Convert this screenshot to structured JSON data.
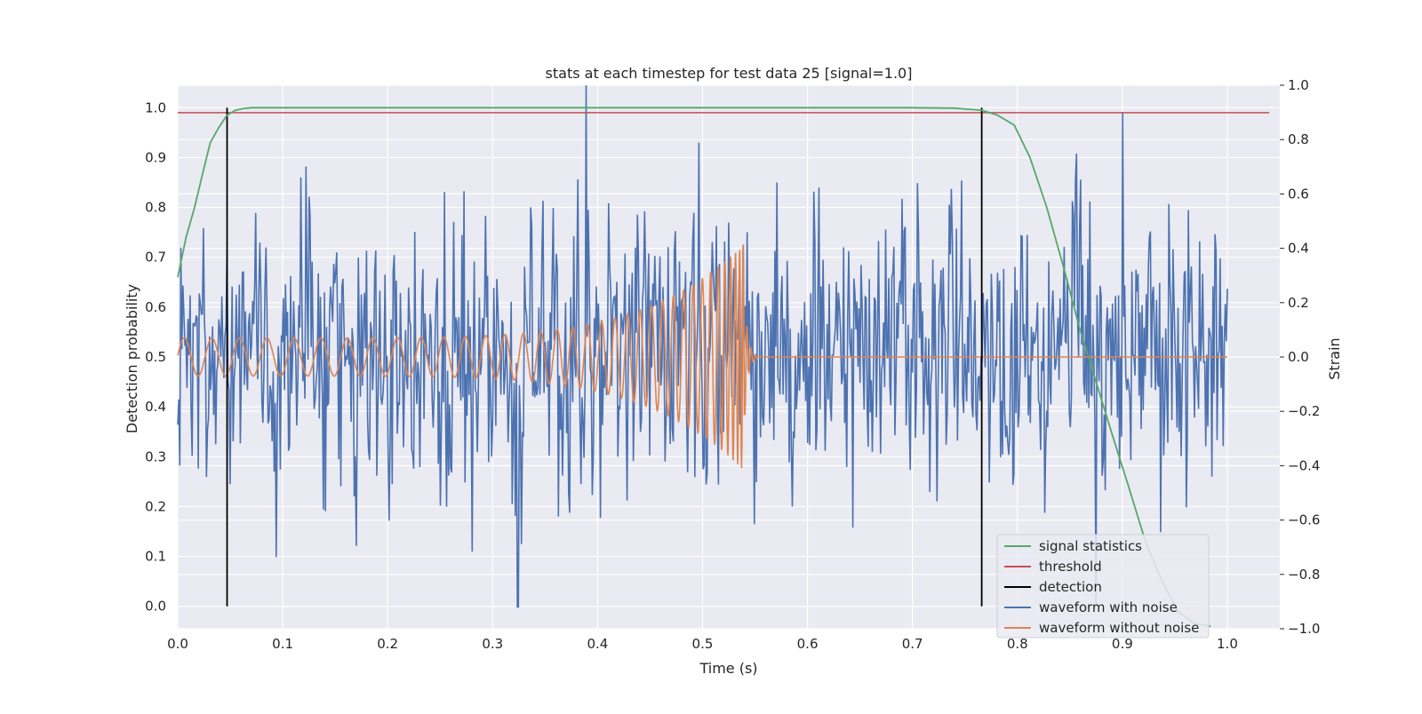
{
  "chart_data": {
    "type": "line",
    "title": "stats at each timestep for test data 25 [signal=1.0]",
    "xlabel": "Time (s)",
    "ylabel_left": "Detection probability",
    "ylabel_right": "Strain",
    "xlim": [
      0.0,
      1.05
    ],
    "ylim_left": [
      -0.045,
      1.045
    ],
    "ylim_right": [
      -1.0,
      1.0
    ],
    "x_ticks": [
      "0.0",
      "0.1",
      "0.2",
      "0.3",
      "0.4",
      "0.5",
      "0.6",
      "0.7",
      "0.8",
      "0.9",
      "1.0"
    ],
    "y_left_ticks": [
      "0.0",
      "0.1",
      "0.2",
      "0.3",
      "0.4",
      "0.5",
      "0.6",
      "0.7",
      "0.8",
      "0.9",
      "1.0"
    ],
    "y_right_ticks": [
      "−1.0",
      "−0.8",
      "−0.6",
      "−0.4",
      "−0.2",
      "0.0",
      "0.2",
      "0.4",
      "0.6",
      "0.8",
      "1.0"
    ],
    "grid": true,
    "legend_position": "lower-right",
    "colors": {
      "signal_statistics": "#55a868",
      "threshold": "#c44e52",
      "detection": "#000000",
      "waveform_with_noise": "#4c72b0",
      "waveform_without_noise": "#dd8452",
      "plot_background": "#eaeaf2",
      "grid": "#ffffff"
    },
    "series": [
      {
        "name": "signal statistics",
        "axis": "left",
        "x": [
          0.0,
          0.008,
          0.016,
          0.024,
          0.031,
          0.039,
          0.047,
          0.055,
          0.062,
          0.07,
          0.1,
          0.2,
          0.3,
          0.4,
          0.5,
          0.6,
          0.7,
          0.74,
          0.766,
          0.781,
          0.797,
          0.812,
          0.828,
          0.844,
          0.859,
          0.875,
          0.891,
          0.906,
          0.922,
          0.938,
          0.953,
          0.969,
          0.984
        ],
        "values": [
          0.66,
          0.74,
          0.8,
          0.87,
          0.93,
          0.96,
          0.985,
          0.995,
          0.998,
          1.0,
          1.0,
          1.0,
          1.0,
          1.0,
          1.0,
          1.0,
          1.0,
          0.999,
          0.995,
          0.985,
          0.965,
          0.9,
          0.8,
          0.68,
          0.56,
          0.45,
          0.34,
          0.24,
          0.13,
          0.05,
          -0.01,
          -0.035,
          -0.04
        ]
      },
      {
        "name": "threshold",
        "axis": "left",
        "x": [
          0.0,
          1.04
        ],
        "values": [
          0.99,
          0.99
        ]
      },
      {
        "name": "detection",
        "axis": "left",
        "segments": [
          {
            "x": 0.047,
            "y": [
              0.0,
              1.0
            ]
          },
          {
            "x": 0.766,
            "y": [
              0.0,
              1.0
            ]
          }
        ]
      },
      {
        "name": "waveform with noise",
        "axis": "right",
        "x_range": [
          0.0,
          1.0
        ],
        "points": 1024,
        "amplitude_range": [
          -0.92,
          1.0
        ],
        "notable_values": [
          {
            "x": 0.324,
            "y": -0.92
          },
          {
            "x": 0.389,
            "y": 1.0
          },
          {
            "x": 0.9,
            "y": 0.9
          }
        ]
      },
      {
        "name": "waveform without noise",
        "axis": "right",
        "x_range": [
          0.0,
          1.0
        ],
        "chirp_frequency_hz": [
          38,
          130
        ],
        "chirp_amplitude": [
          0.07,
          0.42
        ],
        "merger_time": 0.54,
        "value_after_merger": 0.0
      }
    ],
    "legend": [
      "signal statistics",
      "threshold",
      "detection",
      "waveform with noise",
      "waveform without noise"
    ]
  }
}
